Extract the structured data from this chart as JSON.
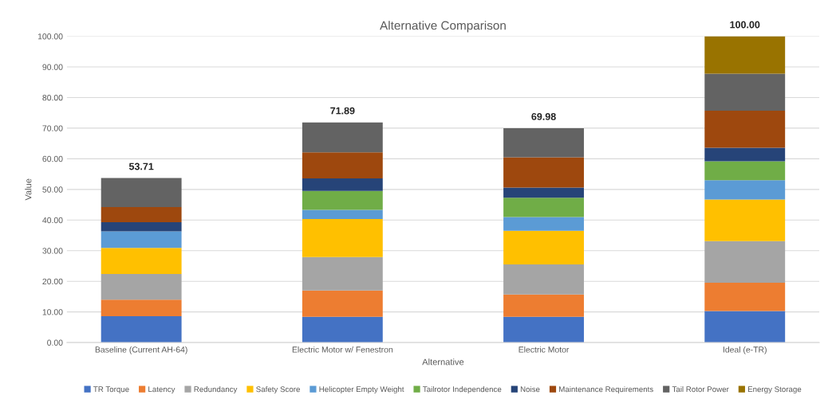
{
  "chart_data": {
    "type": "bar",
    "stacked": true,
    "title": "Alternative Comparison",
    "xlabel": "Alternative",
    "ylabel": "Value",
    "categories": [
      "Baseline (Current AH-64)",
      "Electric Motor w/ Fenestron",
      "Electric Motor",
      "Ideal (e-TR)"
    ],
    "series": [
      {
        "name": "TR Torque",
        "color": "#4472c4",
        "values": [
          8.6,
          8.4,
          8.4,
          10.3
        ]
      },
      {
        "name": "Latency",
        "color": "#ed7d31",
        "values": [
          5.4,
          8.6,
          7.3,
          9.2
        ]
      },
      {
        "name": "Redundancy",
        "color": "#a5a5a5",
        "values": [
          8.4,
          10.9,
          9.8,
          13.6
        ]
      },
      {
        "name": "Safety Score",
        "color": "#ffc000",
        "values": [
          8.5,
          12.4,
          11.0,
          13.6
        ]
      },
      {
        "name": "Helicopter Empty Weight",
        "color": "#5b9bd5",
        "values": [
          5.4,
          3.0,
          4.5,
          6.3
        ]
      },
      {
        "name": "Tailrotor Independence",
        "color": "#70ad47",
        "values": [
          0,
          6.2,
          6.3,
          6.2
        ]
      },
      {
        "name": "Noise",
        "color": "#264478",
        "values": [
          3.0,
          4.1,
          3.3,
          4.4
        ]
      },
      {
        "name": "Maintenance Requirements",
        "color": "#9e480e",
        "values": [
          4.9,
          8.5,
          9.9,
          12.1
        ]
      },
      {
        "name": "Tail Rotor Power",
        "color": "#636363",
        "values": [
          9.51,
          9.79,
          9.48,
          12.1
        ]
      },
      {
        "name": "Energy Storage",
        "color": "#997300",
        "values": [
          0,
          0,
          0,
          12.2
        ]
      }
    ],
    "totals": [
      "53.71",
      "71.89",
      "69.98",
      "100.00"
    ],
    "ylim": [
      0,
      100
    ],
    "yticks": [
      {
        "value": 0,
        "label": "0.00"
      },
      {
        "value": 10,
        "label": "10.00"
      },
      {
        "value": 20,
        "label": "20.00"
      },
      {
        "value": 30,
        "label": "30.00"
      },
      {
        "value": 40,
        "label": "40.00"
      },
      {
        "value": 50,
        "label": "50.00"
      },
      {
        "value": 60,
        "label": "60.00"
      },
      {
        "value": 70,
        "label": "70.00"
      },
      {
        "value": 80,
        "label": "80.00"
      },
      {
        "value": 90,
        "label": "90.00"
      },
      {
        "value": 100,
        "label": "100.00"
      }
    ],
    "grid": "y",
    "legend": "bottom"
  }
}
